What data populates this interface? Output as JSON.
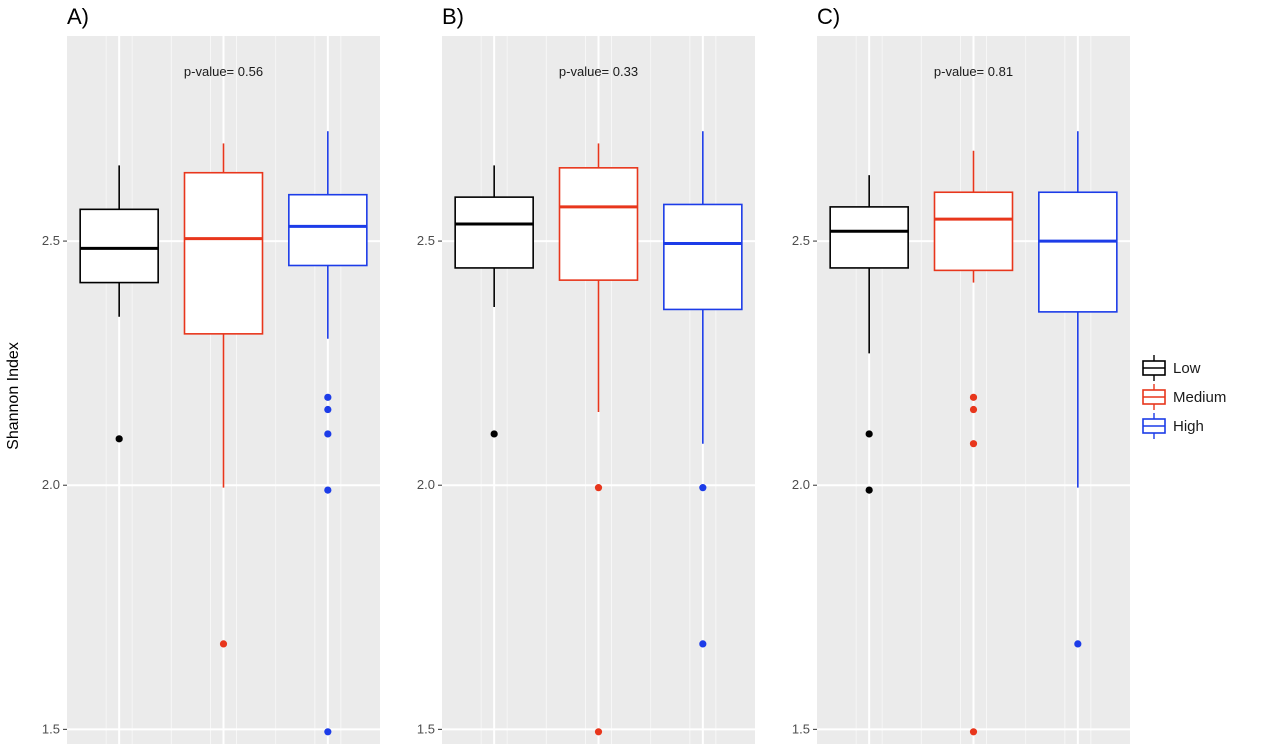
{
  "chart_data": {
    "type": "box",
    "ylabel": "Shannon Index",
    "ylim": [
      1.47,
      2.92
    ],
    "yticks": [
      "1.5",
      "2.0",
      "2.5"
    ],
    "legend": {
      "position": "right",
      "entries": [
        {
          "name": "Low",
          "color": "#000000"
        },
        {
          "name": "Medium",
          "color": "#e8361c"
        },
        {
          "name": "High",
          "color": "#1c3ce8"
        }
      ]
    },
    "panels": [
      {
        "label": "A)",
        "annotation": "p-value= 0.56",
        "groups": [
          {
            "name": "Low",
            "whisker_low": 2.345,
            "q1": 2.415,
            "median": 2.485,
            "q3": 2.565,
            "whisker_high": 2.655,
            "outliers": [
              2.095
            ]
          },
          {
            "name": "Medium",
            "whisker_low": 1.995,
            "q1": 2.31,
            "median": 2.505,
            "q3": 2.64,
            "whisker_high": 2.7,
            "outliers": [
              1.675
            ]
          },
          {
            "name": "High",
            "whisker_low": 2.3,
            "q1": 2.45,
            "median": 2.53,
            "q3": 2.595,
            "whisker_high": 2.725,
            "outliers": [
              2.18,
              2.155,
              2.105,
              1.99,
              1.495
            ]
          }
        ]
      },
      {
        "label": "B)",
        "annotation": "p-value= 0.33",
        "groups": [
          {
            "name": "Low",
            "whisker_low": 2.365,
            "q1": 2.445,
            "median": 2.535,
            "q3": 2.59,
            "whisker_high": 2.655,
            "outliers": [
              2.105
            ]
          },
          {
            "name": "Medium",
            "whisker_low": 2.15,
            "q1": 2.42,
            "median": 2.57,
            "q3": 2.65,
            "whisker_high": 2.7,
            "outliers": [
              1.995,
              1.495
            ]
          },
          {
            "name": "High",
            "whisker_low": 2.085,
            "q1": 2.36,
            "median": 2.495,
            "q3": 2.575,
            "whisker_high": 2.725,
            "outliers": [
              1.995,
              1.675
            ]
          }
        ]
      },
      {
        "label": "C)",
        "annotation": "p-value= 0.81",
        "groups": [
          {
            "name": "Low",
            "whisker_low": 2.27,
            "q1": 2.445,
            "median": 2.52,
            "q3": 2.57,
            "whisker_high": 2.635,
            "outliers": [
              2.105,
              1.99
            ]
          },
          {
            "name": "Medium",
            "whisker_low": 2.415,
            "q1": 2.44,
            "median": 2.545,
            "q3": 2.6,
            "whisker_high": 2.685,
            "outliers": [
              2.18,
              2.155,
              2.085,
              1.495
            ]
          },
          {
            "name": "High",
            "whisker_low": 1.995,
            "q1": 2.355,
            "median": 2.5,
            "q3": 2.6,
            "whisker_high": 2.725,
            "outliers": [
              1.675
            ]
          }
        ]
      }
    ]
  }
}
